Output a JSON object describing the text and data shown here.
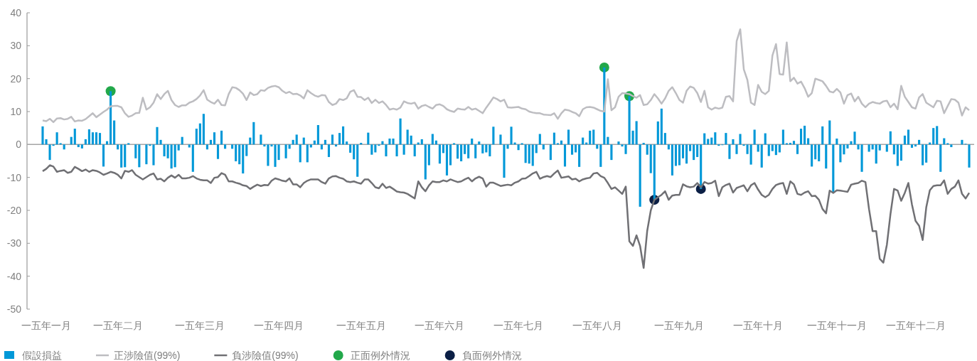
{
  "chart_data": {
    "type": "bar",
    "categories": [
      null,
      "一五年一月",
      null,
      null,
      null,
      null,
      null,
      null,
      null,
      null,
      null,
      null,
      null,
      null,
      null,
      null,
      null,
      null,
      null,
      null,
      null,
      "一五年二月",
      null,
      null,
      null,
      null,
      null,
      null,
      null,
      null,
      null,
      null,
      null,
      null,
      null,
      null,
      null,
      null,
      null,
      null,
      null,
      null,
      null,
      null,
      "一五年三月",
      null,
      null,
      null,
      null,
      null,
      null,
      null,
      null,
      null,
      null,
      null,
      null,
      null,
      null,
      null,
      null,
      null,
      null,
      null,
      null,
      null,
      "一五年四月",
      null,
      null,
      null,
      null,
      null,
      null,
      null,
      null,
      null,
      null,
      null,
      null,
      null,
      null,
      null,
      null,
      null,
      null,
      null,
      null,
      null,
      null,
      "一五年五月",
      null,
      null,
      null,
      null,
      null,
      null,
      null,
      null,
      null,
      null,
      null,
      null,
      null,
      null,
      null,
      null,
      null,
      null,
      null,
      null,
      null,
      "一五年六月",
      null,
      null,
      null,
      null,
      null,
      null,
      null,
      null,
      null,
      null,
      null,
      null,
      null,
      null,
      null,
      null,
      null,
      null,
      null,
      null,
      null,
      "一五年七月",
      null,
      null,
      null,
      null,
      null,
      null,
      null,
      null,
      null,
      null,
      null,
      null,
      null,
      null,
      null,
      null,
      null,
      null,
      null,
      null,
      null,
      "一五年八月",
      null,
      null,
      null,
      null,
      null,
      null,
      null,
      null,
      null,
      null,
      null,
      null,
      null,
      null,
      null,
      null,
      null,
      null,
      null,
      null,
      null,
      null,
      "一五年九月",
      null,
      null,
      null,
      null,
      null,
      null,
      null,
      null,
      null,
      null,
      null,
      null,
      null,
      null,
      null,
      null,
      null,
      null,
      null,
      null,
      null,
      "一五年十月",
      null,
      null,
      null,
      null,
      null,
      null,
      null,
      null,
      null,
      null,
      null,
      null,
      null,
      null,
      null,
      null,
      null,
      null,
      null,
      null,
      null,
      "一五年十一月",
      null,
      null,
      null,
      null,
      null,
      null,
      null,
      null,
      null,
      null,
      null,
      null,
      null,
      null,
      null,
      null,
      null,
      null,
      null,
      null,
      null,
      "一五年十二月",
      null,
      null,
      null,
      null,
      null,
      null,
      null,
      null,
      null,
      null,
      null,
      null,
      null,
      null,
      null
    ],
    "ylim": [
      -50,
      40
    ],
    "yticks": [
      40,
      30,
      20,
      10,
      0,
      -10,
      -20,
      -30,
      -40,
      -50
    ],
    "legend": "bottom",
    "series": [
      {
        "name": "假設損益",
        "color": "#0098d8",
        "values": [
          5.5,
          1.6,
          -4.7,
          -0.4,
          3.7,
          0.4,
          -1.5,
          0,
          2.3,
          4.8,
          -0.8,
          -1.2,
          1.6,
          4.6,
          3.7,
          3.7,
          3.5,
          -6.7,
          1.0,
          16.2,
          7.3,
          -1.5,
          -7.0,
          -6.9,
          0.4,
          0,
          -4.2,
          -6.9,
          0,
          -6.0,
          -0.4,
          -6.3,
          5.3,
          1.4,
          -3.6,
          -4.2,
          -7.3,
          -6.9,
          -1.8,
          2.3,
          null,
          -0.9,
          -8.3,
          4.8,
          6.4,
          9.3,
          -1.5,
          1.4,
          3.7,
          -4.4,
          4.2,
          -1.3,
          0,
          -1.3,
          -5.1,
          -6.0,
          -8.8,
          -3.5,
          2.1,
          6.8,
          0,
          3.0,
          -0.6,
          -6.5,
          -0.6,
          -6.8,
          -4.7,
          0,
          -4.2,
          -1.3,
          1.4,
          3.0,
          -5.4,
          2.1,
          -5.4,
          -0.9,
          1.2,
          5.9,
          -1.5,
          1.4,
          -3.8,
          3.0,
          -0.6,
          3.5,
          5.5,
          0.9,
          -2.5,
          -4.5,
          -9.8,
          0.5,
          null,
          3.6,
          -3.1,
          -2.4,
          -0.4,
          1.0,
          -3.6,
          1.8,
          1.8,
          -3.6,
          7.9,
          -3.1,
          4.5,
          2.7,
          -3.6,
          0.6,
          1.6,
          -10.6,
          -6.3,
          3.2,
          1.2,
          -5.8,
          -2.6,
          -9.4,
          -6.3,
          0.4,
          -4.3,
          -5.1,
          -2.9,
          -4.2,
          1.8,
          -4.2,
          0.9,
          -2.7,
          -2.4,
          -3.6,
          5.4,
          0,
          3.0,
          -10.1,
          -1.3,
          5.4,
          0.6,
          -1.7,
          0.4,
          -5.6,
          -5.8,
          -6.5,
          -2.6,
          3.2,
          -1.5,
          0,
          -4.7,
          3.6,
          0.4,
          1.2,
          -6.7,
          4.5,
          -3.1,
          -2.4,
          -6.8,
          2.1,
          0.6,
          4.2,
          4.5,
          -1.3,
          -6.8,
          23.4,
          2.3,
          -4.7,
          0,
          0.9,
          -0.6,
          -2.9,
          14.7,
          4.2,
          7.1,
          -18.9,
          0.5,
          -3.1,
          -8.7,
          -16.8,
          7.0,
          10.9,
          3.5,
          -1.5,
          -9.4,
          -6.5,
          -6.3,
          -4.2,
          -5.8,
          -2.0,
          -4.7,
          -3.8,
          -13.5,
          3.4,
          1.7,
          2.1,
          3.7,
          -0.4,
          -0.2,
          3.5,
          -4.4,
          1.6,
          -2.9,
          3.2,
          -0.4,
          -2.9,
          -6.1,
          4.5,
          -2.2,
          -7.0,
          3.4,
          -3.5,
          -2.0,
          -3.2,
          -2.4,
          4.5,
          0.4,
          0.5,
          1.1,
          -2.9,
          4.8,
          5.7,
          1.9,
          -6.7,
          -4.5,
          -5.1,
          5.5,
          -7.3,
          7.3,
          -14.6,
          1.8,
          -5.4,
          -3.0,
          -1.2,
          1.0,
          3.9,
          -1.5,
          -8.3,
          null,
          -2.2,
          -1.5,
          -5.8,
          -1.8,
          null,
          -2.2,
          4.0,
          -3.0,
          -6.5,
          -4.9,
          2.7,
          4.5,
          -1.0,
          -0.6,
          1.4,
          -6.3,
          -5.5,
          0.6,
          5.0,
          5.6,
          -8.3,
          1.9,
          0.4,
          -0.8,
          0,
          0,
          1.4,
          0.2,
          -7.0
        ]
      },
      {
        "name": "正涉險值(99%)",
        "type": "line",
        "color": "#bdbdc1",
        "values": [
          7.3,
          7.1,
          7.8,
          6.8,
          7.9,
          8.0,
          7.6,
          7.8,
          8.4,
          7.0,
          7.3,
          7.2,
          7.7,
          8.6,
          9.5,
          8.3,
          9.1,
          9.9,
          10.6,
          11.6,
          11.7,
          11.7,
          11.3,
          9.5,
          8.4,
          8.8,
          9.5,
          9.6,
          14.2,
          10.6,
          11.3,
          12.7,
          15.3,
          13.8,
          15.3,
          16.3,
          13.5,
          12.0,
          11.4,
          11.9,
          11.9,
          12.7,
          13.1,
          13.8,
          14.9,
          16.5,
          13.6,
          12.9,
          12.4,
          13.6,
          12.0,
          11.9,
          15.3,
          17.4,
          17.2,
          16.5,
          15.4,
          13.5,
          15.8,
          15.0,
          15.3,
          16.5,
          16.3,
          17.2,
          17.6,
          17.8,
          17.4,
          16.3,
          15.6,
          16.0,
          15.3,
          15.4,
          14.9,
          14.0,
          16.5,
          15.6,
          14.9,
          14.5,
          15.0,
          14.9,
          12.9,
          12.0,
          12.4,
          13.8,
          13.5,
          14.0,
          16.0,
          16.5,
          14.5,
          14.4,
          13.5,
          14.2,
          12.6,
          13.6,
          12.6,
          13.1,
          12.0,
          10.6,
          10.9,
          10.6,
          11.2,
          13.1,
          12.6,
          12.4,
          12.7,
          10.9,
          11.7,
          12.0,
          11.4,
          10.9,
          12.0,
          12.2,
          11.7,
          10.7,
          10.2,
          9.9,
          10.9,
          10.7,
          10.6,
          11.4,
          10.6,
          10.9,
          10.2,
          9.5,
          11.2,
          12.7,
          14.3,
          13.8,
          13.1,
          13.6,
          11.3,
          11.2,
          11.3,
          11.4,
          10.9,
          10.7,
          10.0,
          9.7,
          9.5,
          9.5,
          9.1,
          9.0,
          8.9,
          9.5,
          7.8,
          9.5,
          10.6,
          10.4,
          9.9,
          9.5,
          8.6,
          10.7,
          11.3,
          11.4,
          11.2,
          10.7,
          10.2,
          10.0,
          19.8,
          10.4,
          11.3,
          14.5,
          15.6,
          15.5,
          15.3,
          14.7,
          14.2,
          15.0,
          12.0,
          12.2,
          13.5,
          15.3,
          14.0,
          12.4,
          14.0,
          16.3,
          17.4,
          15.6,
          13.5,
          12.7,
          16.3,
          17.6,
          17.2,
          15.6,
          12.9,
          16.3,
          11.3,
          10.6,
          11.2,
          10.9,
          11.2,
          14.5,
          14.7,
          13.1,
          31.4,
          35.0,
          22.8,
          19.6,
          12.7,
          12.0,
          18.1,
          16.0,
          15.3,
          16.3,
          27.0,
          30.5,
          21.4,
          21.2,
          31.0,
          19.2,
          20.3,
          18.5,
          19.1,
          17.1,
          14.5,
          15.6,
          20.0,
          19.6,
          19.2,
          17.8,
          16.1,
          15.8,
          16.9,
          15.8,
          12.4,
          15.0,
          15.5,
          13.1,
          14.5,
          12.4,
          11.3,
          12.4,
          12.9,
          12.6,
          12.4,
          13.1,
          13.3,
          11.3,
          12.4,
          10.7,
          17.8,
          14.5,
          12.9,
          11.3,
          10.9,
          14.3,
          15.3,
          12.7,
          12.0,
          11.3,
          13.3,
          13.1,
          9.5,
          11.7,
          13.8,
          13.6,
          12.7,
          8.8,
          11.3,
          10.4
        ]
      },
      {
        "name": "負涉險值(99%)",
        "type": "line",
        "color": "#707074",
        "values": [
          -8.1,
          -7.4,
          -6.3,
          -6.7,
          -8.3,
          -8.0,
          -7.8,
          -8.6,
          -8.3,
          -6.8,
          -7.4,
          -8.1,
          -7.6,
          -8.3,
          -7.8,
          -8.0,
          -8.5,
          -9.2,
          -8.8,
          -8.3,
          -8.6,
          -9.2,
          -10.3,
          -8.0,
          -8.3,
          -7.8,
          -9.2,
          -9.9,
          -10.6,
          -9.9,
          -9.2,
          -8.8,
          -10.6,
          -10.4,
          -11.2,
          -10.1,
          -9.4,
          -10.1,
          -9.2,
          -10.3,
          -10.3,
          -10.1,
          -9.6,
          -10.3,
          -10.7,
          -10.9,
          -10.9,
          -11.7,
          -10.1,
          -9.9,
          -8.7,
          -9.2,
          -11.2,
          -11.2,
          -11.6,
          -11.9,
          -12.4,
          -12.6,
          -13.5,
          -12.8,
          -12.2,
          -12.6,
          -12.3,
          -12.4,
          -11.0,
          -10.3,
          -10.6,
          -11.0,
          -11.2,
          -10.3,
          -12.1,
          -12.1,
          -13.0,
          -11.7,
          -11.0,
          -10.6,
          -10.6,
          -10.6,
          -11.4,
          -11.9,
          -10.3,
          -9.7,
          -9.6,
          -10.1,
          -10.4,
          -11.2,
          -11.4,
          -11.2,
          -11.6,
          -11.9,
          -10.6,
          -10.6,
          -11.7,
          -13.0,
          -13.3,
          -11.9,
          -13.2,
          -12.8,
          -13.5,
          -14.3,
          -14.5,
          -14.6,
          -15.0,
          -15.7,
          -16.4,
          -11.2,
          -13.0,
          -14.2,
          -12.4,
          -11.2,
          -11.4,
          -11.4,
          -10.9,
          -11.2,
          -10.6,
          -11.0,
          -11.4,
          -11.2,
          -10.6,
          -10.1,
          -11.2,
          -10.3,
          -9.8,
          -10.3,
          -12.8,
          -11.6,
          -11.6,
          -12.1,
          -12.6,
          -12.4,
          -12.2,
          -12.4,
          -11.6,
          -11.2,
          -10.4,
          -10.3,
          -9.6,
          -8.8,
          -8.3,
          -10.4,
          -9.9,
          -9.6,
          -9.9,
          -8.8,
          -7.9,
          -10.1,
          -9.9,
          -9.7,
          -10.6,
          -10.4,
          -11.2,
          -10.6,
          -10.3,
          -10.1,
          -8.8,
          -8.6,
          -9.6,
          -10.1,
          -11.7,
          -13.5,
          -13.0,
          -14.0,
          -15.0,
          -12.8,
          -29.4,
          -30.8,
          -27.6,
          -30.8,
          -37.5,
          -26.2,
          -20.0,
          -16.8,
          -16.0,
          -15.3,
          -14.2,
          -16.8,
          -15.5,
          -15.3,
          -15.3,
          -12.1,
          -12.7,
          -13.0,
          -12.8,
          -11.7,
          -13.0,
          -11.4,
          -11.9,
          -11.7,
          -11.0,
          -15.7,
          -13.0,
          -12.3,
          -11.9,
          -14.6,
          -13.2,
          -12.8,
          -12.4,
          -14.2,
          -12.4,
          -11.7,
          -13.7,
          -15.3,
          -16.0,
          -15.3,
          -13.5,
          -12.3,
          -11.9,
          -11.7,
          -15.0,
          -11.2,
          -12.1,
          -15.0,
          -15.3,
          -14.6,
          -14.2,
          -15.7,
          -15.6,
          -16.8,
          -19.6,
          -20.9,
          -14.0,
          -14.7,
          -13.9,
          -14.0,
          -14.2,
          -14.4,
          -12.2,
          -11.9,
          -11.7,
          -11.0,
          -11.4,
          -19.6,
          -26.3,
          -26.3,
          -34.7,
          -35.9,
          -30.4,
          -21.1,
          -13.5,
          -14.0,
          -17.1,
          -14.7,
          -11.7,
          -18.2,
          -23.2,
          -24.7,
          -29.0,
          -19.1,
          -13.9,
          -12.6,
          -12.4,
          -12.4,
          -10.9,
          -15.0,
          -13.5,
          -12.8,
          -10.9,
          -15.0,
          -16.4,
          -14.7
        ]
      },
      {
        "name": "正面例外情況",
        "type": "scatter",
        "marker": "circle",
        "color": "#22a84a",
        "values": [
          null,
          null,
          null,
          null,
          null,
          null,
          null,
          null,
          null,
          null,
          null,
          null,
          null,
          null,
          null,
          null,
          null,
          null,
          null,
          16.2,
          null,
          null,
          null,
          null,
          null,
          null,
          null,
          null,
          null,
          null,
          null,
          null,
          null,
          null,
          null,
          null,
          null,
          null,
          null,
          null,
          null,
          null,
          null,
          null,
          null,
          null,
          null,
          null,
          null,
          null,
          null,
          null,
          null,
          null,
          null,
          null,
          null,
          null,
          null,
          null,
          null,
          null,
          null,
          null,
          null,
          null,
          null,
          null,
          null,
          null,
          null,
          null,
          null,
          null,
          null,
          null,
          null,
          null,
          null,
          null,
          null,
          null,
          null,
          null,
          null,
          null,
          null,
          null,
          null,
          null,
          null,
          null,
          null,
          null,
          null,
          null,
          null,
          null,
          null,
          null,
          null,
          null,
          null,
          null,
          null,
          null,
          null,
          null,
          null,
          null,
          null,
          null,
          null,
          null,
          null,
          null,
          null,
          null,
          null,
          null,
          null,
          null,
          null,
          null,
          null,
          null,
          null,
          null,
          null,
          null,
          null,
          null,
          null,
          null,
          null,
          null,
          null,
          null,
          null,
          null,
          null,
          null,
          null,
          null,
          null,
          null,
          null,
          null,
          null,
          null,
          null,
          null,
          null,
          null,
          null,
          null,
          null,
          23.4,
          null,
          null,
          null,
          null,
          null,
          null,
          14.7,
          null,
          null,
          null,
          null,
          null,
          null,
          null,
          null,
          null,
          null,
          null,
          null,
          null,
          null,
          null,
          null,
          null,
          null,
          null,
          null,
          null,
          null,
          null,
          null,
          null,
          null,
          null,
          null,
          null,
          null,
          null,
          null,
          null,
          null,
          null,
          null,
          null,
          null,
          null,
          null,
          null,
          null,
          null,
          null,
          null,
          null,
          null,
          null,
          null,
          null,
          null,
          null,
          null,
          null,
          null,
          null,
          null,
          null,
          null,
          null,
          null,
          null,
          null,
          null,
          null,
          null,
          null,
          null,
          null,
          null,
          null,
          null,
          null,
          null,
          null,
          null,
          null,
          null,
          null,
          null,
          null,
          null,
          null,
          null,
          null,
          null,
          null,
          null,
          null,
          null,
          null,
          null,
          null,
          null,
          null
        ]
      },
      {
        "name": "負面例外情況",
        "type": "scatter",
        "marker": "circle",
        "color": "#0b1f45",
        "values": [
          null,
          null,
          null,
          null,
          null,
          null,
          null,
          null,
          null,
          null,
          null,
          null,
          null,
          null,
          null,
          null,
          null,
          null,
          null,
          null,
          null,
          null,
          null,
          null,
          null,
          null,
          null,
          null,
          null,
          null,
          null,
          null,
          null,
          null,
          null,
          null,
          null,
          null,
          null,
          null,
          null,
          null,
          null,
          null,
          null,
          null,
          null,
          null,
          null,
          null,
          null,
          null,
          null,
          null,
          null,
          null,
          null,
          null,
          null,
          null,
          null,
          null,
          null,
          null,
          null,
          null,
          null,
          null,
          null,
          null,
          null,
          null,
          null,
          null,
          null,
          null,
          null,
          null,
          null,
          null,
          null,
          null,
          null,
          null,
          null,
          null,
          null,
          null,
          null,
          null,
          null,
          null,
          null,
          null,
          null,
          null,
          null,
          null,
          null,
          null,
          null,
          null,
          null,
          null,
          null,
          null,
          null,
          null,
          null,
          null,
          null,
          null,
          null,
          null,
          null,
          null,
          null,
          null,
          null,
          null,
          null,
          null,
          null,
          null,
          null,
          null,
          null,
          null,
          null,
          null,
          null,
          null,
          null,
          null,
          null,
          null,
          null,
          null,
          null,
          null,
          null,
          null,
          null,
          null,
          null,
          null,
          null,
          null,
          null,
          null,
          null,
          null,
          null,
          null,
          null,
          null,
          null,
          null,
          null,
          null,
          null,
          null,
          null,
          null,
          null,
          null,
          null,
          null,
          null,
          null,
          null,
          -16.8,
          null,
          null,
          null,
          null,
          null,
          null,
          null,
          null,
          null,
          null,
          null,
          null,
          -13.5,
          null,
          null,
          null,
          null,
          null,
          null,
          null,
          null,
          null,
          null,
          null,
          null,
          null,
          null,
          null,
          null,
          null,
          null,
          null,
          null,
          null,
          null,
          null,
          null,
          null,
          null,
          null,
          null,
          null,
          null,
          null,
          null,
          null,
          null,
          null,
          null,
          null,
          null,
          null,
          null,
          null,
          null,
          null,
          null,
          null,
          null,
          null,
          null,
          null,
          null,
          null,
          null,
          null,
          null,
          null,
          null,
          null,
          null,
          null,
          null,
          null,
          null,
          null,
          null,
          null,
          null,
          null,
          null,
          null,
          null,
          null,
          null,
          null,
          null,
          null
        ]
      }
    ]
  }
}
